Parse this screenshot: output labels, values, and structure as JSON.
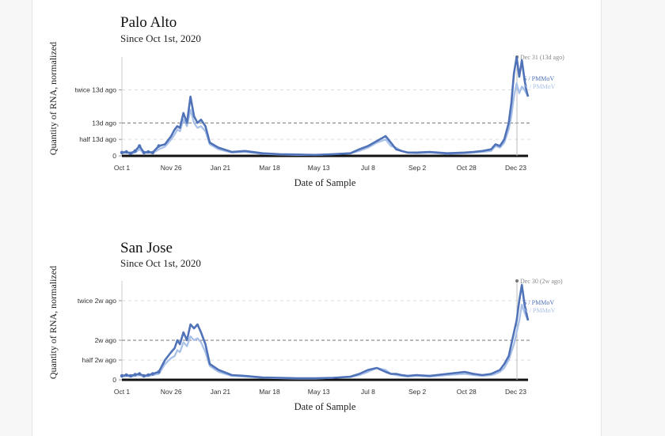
{
  "chart_data": [
    {
      "type": "line",
      "title": "Palo Alto",
      "subtitle": "Since Oct 1st, 2020",
      "xlabel": "Date of Sample",
      "ylabel": "Quantity of RNA, normalized",
      "x_ticks": [
        "Oct 1",
        "Nov 26",
        "Jan 21",
        "Mar 18",
        "May 13",
        "Jul 8",
        "Sep 2",
        "Oct 28",
        "Dec 23"
      ],
      "y_ticks": [
        "0",
        "half 13d ago",
        "13d ago",
        "twice 13d ago"
      ],
      "y_tick_values": [
        0,
        0.5,
        1,
        2
      ],
      "ylim": [
        0,
        3
      ],
      "xlim_days": [
        0,
        462
      ],
      "reference_annotation": "Dec 31 (13d ago)",
      "series": [
        {
          "name": "S / PMMoV",
          "color": "#4f72b8",
          "x": [
            0,
            5,
            10,
            15,
            20,
            25,
            30,
            35,
            42,
            49,
            56,
            60,
            63,
            66,
            70,
            74,
            78,
            82,
            86,
            90,
            95,
            100,
            110,
            125,
            140,
            160,
            180,
            200,
            220,
            240,
            260,
            270,
            280,
            290,
            300,
            306,
            312,
            318,
            325,
            335,
            350,
            370,
            390,
            400,
            410,
            420,
            425,
            430,
            435,
            440,
            443,
            446,
            449,
            452,
            455,
            458,
            460,
            462
          ],
          "y": [
            0.1,
            0.12,
            0.08,
            0.15,
            0.3,
            0.1,
            0.12,
            0.1,
            0.3,
            0.35,
            0.6,
            0.8,
            0.9,
            0.85,
            1.3,
            1.0,
            1.8,
            1.2,
            1.0,
            1.1,
            0.9,
            0.4,
            0.25,
            0.12,
            0.15,
            0.08,
            0.05,
            0.04,
            0.03,
            0.05,
            0.08,
            0.2,
            0.3,
            0.45,
            0.6,
            0.4,
            0.2,
            0.15,
            0.1,
            0.1,
            0.12,
            0.08,
            0.1,
            0.12,
            0.15,
            0.2,
            0.35,
            0.3,
            0.5,
            1.0,
            1.6,
            2.5,
            3.0,
            2.4,
            2.9,
            2.3,
            2.0,
            1.8
          ]
        },
        {
          "name": "N / PMMoV",
          "color": "#a9c1e8",
          "x": [
            0,
            5,
            10,
            15,
            20,
            25,
            30,
            35,
            42,
            49,
            56,
            60,
            63,
            66,
            70,
            74,
            78,
            82,
            86,
            90,
            95,
            100,
            110,
            125,
            140,
            160,
            180,
            200,
            220,
            240,
            260,
            270,
            280,
            290,
            300,
            306,
            312,
            318,
            325,
            335,
            350,
            370,
            390,
            400,
            410,
            420,
            425,
            430,
            435,
            440,
            443,
            446,
            449,
            452,
            455,
            458,
            460,
            462
          ],
          "y": [
            0.08,
            0.1,
            0.06,
            0.1,
            0.2,
            0.08,
            0.1,
            0.08,
            0.2,
            0.28,
            0.5,
            0.65,
            0.8,
            0.75,
            1.1,
            0.9,
            1.4,
            1.0,
            0.85,
            0.9,
            0.75,
            0.35,
            0.2,
            0.1,
            0.12,
            0.06,
            0.04,
            0.03,
            0.03,
            0.05,
            0.08,
            0.15,
            0.25,
            0.4,
            0.5,
            0.3,
            0.25,
            0.15,
            0.1,
            0.08,
            0.1,
            0.06,
            0.08,
            0.1,
            0.12,
            0.15,
            0.3,
            0.25,
            0.4,
            0.8,
            1.2,
            1.8,
            2.2,
            1.9,
            2.1,
            2.0,
            1.9,
            1.8
          ]
        }
      ]
    },
    {
      "type": "line",
      "title": "San Jose",
      "subtitle": "Since Oct 1st, 2020",
      "xlabel": "Date of Sample",
      "ylabel": "Quantity of RNA, normalized",
      "x_ticks": [
        "Oct 1",
        "Nov 26",
        "Jan 21",
        "Mar 18",
        "May 13",
        "Jul 8",
        "Sep 2",
        "Oct 28",
        "Dec 23"
      ],
      "y_ticks": [
        "0",
        "half 2w ago",
        "2w ago",
        "twice 2w ago"
      ],
      "y_tick_values": [
        0,
        0.5,
        1,
        2
      ],
      "ylim": [
        0,
        2.5
      ],
      "xlim_days": [
        0,
        462
      ],
      "reference_annotation": "Dec 30 (2w ago)",
      "series": [
        {
          "name": "S / PMMoV",
          "color": "#4f72b8",
          "x": [
            0,
            5,
            10,
            15,
            20,
            25,
            30,
            35,
            42,
            49,
            56,
            60,
            63,
            66,
            70,
            74,
            78,
            82,
            86,
            90,
            95,
            100,
            110,
            125,
            140,
            160,
            180,
            200,
            220,
            240,
            260,
            270,
            280,
            290,
            300,
            306,
            312,
            318,
            325,
            335,
            350,
            370,
            390,
            400,
            410,
            420,
            425,
            430,
            435,
            440,
            443,
            446,
            449,
            452,
            455,
            458,
            460,
            462
          ],
          "y": [
            0.1,
            0.12,
            0.1,
            0.13,
            0.15,
            0.1,
            0.12,
            0.15,
            0.2,
            0.5,
            0.7,
            0.8,
            1.0,
            0.9,
            1.2,
            1.0,
            1.4,
            1.3,
            1.4,
            1.2,
            0.9,
            0.4,
            0.25,
            0.12,
            0.1,
            0.06,
            0.05,
            0.04,
            0.04,
            0.05,
            0.08,
            0.15,
            0.25,
            0.3,
            0.2,
            0.15,
            0.15,
            0.12,
            0.1,
            0.12,
            0.1,
            0.15,
            0.2,
            0.15,
            0.12,
            0.15,
            0.2,
            0.25,
            0.4,
            0.6,
            0.9,
            1.2,
            1.5,
            2.0,
            2.4,
            1.9,
            1.7,
            1.5
          ]
        },
        {
          "name": "N / PMMoV",
          "color": "#a9c1e8",
          "x": [
            0,
            5,
            10,
            15,
            20,
            25,
            30,
            35,
            42,
            49,
            56,
            60,
            63,
            66,
            70,
            74,
            78,
            82,
            86,
            90,
            95,
            100,
            110,
            125,
            140,
            160,
            180,
            200,
            220,
            240,
            260,
            270,
            280,
            290,
            300,
            306,
            312,
            318,
            325,
            335,
            350,
            370,
            390,
            400,
            410,
            420,
            425,
            430,
            435,
            440,
            443,
            446,
            449,
            452,
            455,
            458,
            460,
            462
          ],
          "y": [
            0.08,
            0.1,
            0.08,
            0.1,
            0.12,
            0.08,
            0.1,
            0.12,
            0.15,
            0.4,
            0.55,
            0.6,
            0.75,
            0.7,
            0.95,
            0.85,
            1.1,
            1.0,
            1.05,
            0.95,
            0.7,
            0.35,
            0.2,
            0.1,
            0.08,
            0.05,
            0.04,
            0.03,
            0.03,
            0.05,
            0.07,
            0.12,
            0.2,
            0.3,
            0.25,
            0.15,
            0.12,
            0.1,
            0.08,
            0.1,
            0.08,
            0.12,
            0.15,
            0.12,
            0.1,
            0.12,
            0.15,
            0.2,
            0.3,
            0.5,
            0.7,
            0.9,
            1.2,
            1.5,
            1.9,
            1.7,
            1.6,
            1.5
          ]
        }
      ]
    }
  ]
}
